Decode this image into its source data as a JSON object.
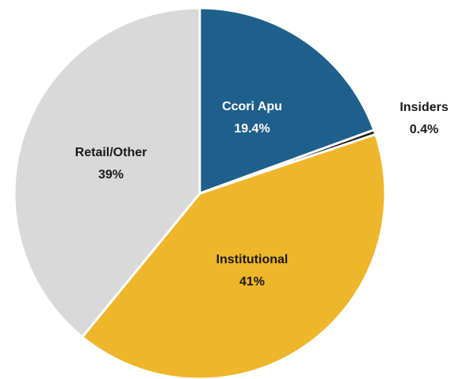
{
  "chart_data": {
    "type": "pie",
    "categories": [
      "Ccori Apu",
      "Insiders",
      "Institutional",
      "Retail/Other"
    ],
    "values": [
      19.4,
      0.4,
      41,
      39
    ],
    "value_labels": [
      "19.4%",
      "0.4%",
      "41%",
      "39%"
    ],
    "colors": [
      "#1f5f8b",
      "#1a1a1a",
      "#efb52b",
      "#d9d9d9"
    ]
  }
}
